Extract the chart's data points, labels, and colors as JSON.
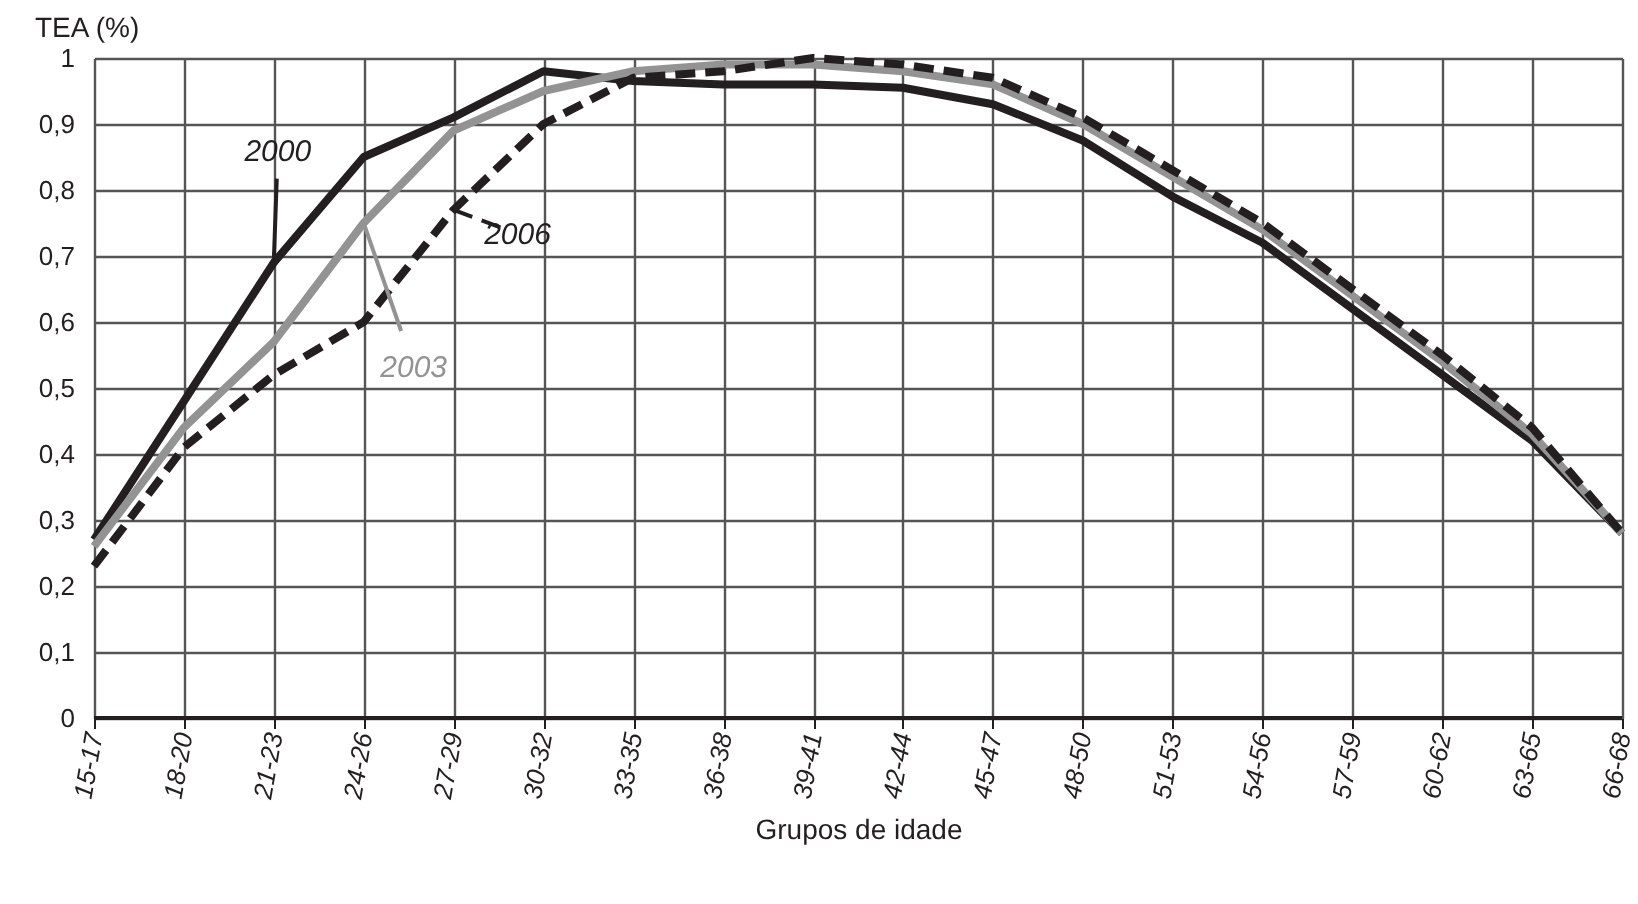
{
  "chart_data": {
    "type": "line",
    "xlabel": "Grupos de idade",
    "ylabel": "TEA (%)",
    "categories": [
      "15-17",
      "18-20",
      "21-23",
      "24-26",
      "27-29",
      "30-32",
      "33-35",
      "36-38",
      "39-41",
      "42-44",
      "45-47",
      "48-50",
      "51-53",
      "54-56",
      "57-59",
      "60-62",
      "63-65",
      "66-68"
    ],
    "series": [
      {
        "name": "2000",
        "color": "#231f20",
        "values": [
          0.27,
          0.48,
          0.69,
          0.85,
          0.91,
          0.98,
          0.965,
          0.96,
          0.96,
          0.955,
          0.93,
          0.875,
          0.79,
          0.72,
          0.62,
          0.52,
          0.42,
          0.28
        ]
      },
      {
        "name": "2003",
        "color": "#939393",
        "values": [
          0.26,
          0.44,
          0.57,
          0.75,
          0.89,
          0.95,
          0.98,
          0.99,
          0.99,
          0.98,
          0.96,
          0.9,
          0.82,
          0.74,
          0.64,
          0.54,
          0.43,
          0.28
        ]
      },
      {
        "name": "2006",
        "color": "#231f20",
        "line_style": "dashed",
        "values": [
          0.23,
          0.41,
          0.52,
          0.6,
          0.77,
          0.9,
          0.97,
          0.98,
          1.0,
          0.99,
          0.97,
          0.91,
          0.83,
          0.75,
          0.65,
          0.55,
          0.44,
          0.28
        ]
      }
    ],
    "ylim": [
      0,
      1
    ],
    "yticks": [
      0,
      {
        "value": 0.1,
        "label": "0,1"
      },
      {
        "value": 0.2,
        "label": "0,2"
      },
      {
        "value": 0.3,
        "label": "0,3"
      },
      {
        "value": 0.4,
        "label": "0,4"
      },
      {
        "value": 0.5,
        "label": "0,5"
      },
      {
        "value": 0.6,
        "label": "0,6"
      },
      {
        "value": 0.7,
        "label": "0,7"
      },
      {
        "value": 0.8,
        "label": "0,8"
      },
      {
        "value": 0.9,
        "label": "0,9"
      },
      1
    ],
    "grid": true
  }
}
